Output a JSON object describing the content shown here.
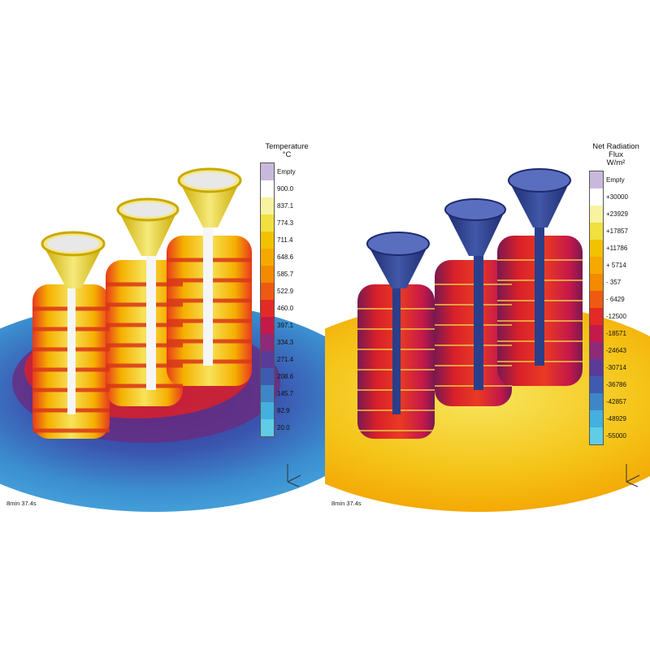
{
  "left": {
    "legend": {
      "title": "Temperature",
      "unit": "°C",
      "entries": [
        {
          "label": "Empty",
          "color": "#c8b9dc"
        },
        {
          "label": "900.0",
          "color": "#ffffff"
        },
        {
          "label": "837.1",
          "color": "#f7f3a0"
        },
        {
          "label": "774.3",
          "color": "#f0e040"
        },
        {
          "label": "711.4",
          "color": "#f2c200"
        },
        {
          "label": "648.6",
          "color": "#f5a800"
        },
        {
          "label": "585.7",
          "color": "#f38a00"
        },
        {
          "label": "522.9",
          "color": "#ee5a12"
        },
        {
          "label": "460.0",
          "color": "#e42a26"
        },
        {
          "label": "397.1",
          "color": "#c41a4a"
        },
        {
          "label": "334.3",
          "color": "#8e2a78"
        },
        {
          "label": "271.4",
          "color": "#5b3b98"
        },
        {
          "label": "208.6",
          "color": "#3e5bb0"
        },
        {
          "label": "145.7",
          "color": "#3f86c8"
        },
        {
          "label": "82.9",
          "color": "#44b0dd"
        },
        {
          "label": "20.0",
          "color": "#60cce6"
        }
      ]
    },
    "time": "8min 37.4s"
  },
  "right": {
    "legend": {
      "title": "Net Radiation Flux",
      "unit": "W/m²",
      "entries": [
        {
          "label": "Empty",
          "color": "#c8b9dc"
        },
        {
          "label": "+30000",
          "color": "#ffffff"
        },
        {
          "label": "+23929",
          "color": "#f7f3a0"
        },
        {
          "label": "+17857",
          "color": "#f0e040"
        },
        {
          "label": "+11786",
          "color": "#f2c200"
        },
        {
          "label": "+ 5714",
          "color": "#f5a800"
        },
        {
          "label": "- 357",
          "color": "#f38a00"
        },
        {
          "label": "- 6429",
          "color": "#ee5a12"
        },
        {
          "label": "-12500",
          "color": "#e42a26"
        },
        {
          "label": "-18571",
          "color": "#c41a4a"
        },
        {
          "label": "-24643",
          "color": "#8e2a78"
        },
        {
          "label": "-30714",
          "color": "#5b3b98"
        },
        {
          "label": "-36786",
          "color": "#3e5bb0"
        },
        {
          "label": "-42857",
          "color": "#3f86c8"
        },
        {
          "label": "-48929",
          "color": "#44b0dd"
        },
        {
          "label": "-55000",
          "color": "#60cce6"
        }
      ]
    },
    "time": "8min 37.4s"
  },
  "colors": {
    "floor_left": "#3b8ed0",
    "floor_right": "#f5a400",
    "hot": "#f0d21a",
    "cold": "#24489a"
  },
  "icons": {
    "axis": "axis-triad-icon"
  }
}
